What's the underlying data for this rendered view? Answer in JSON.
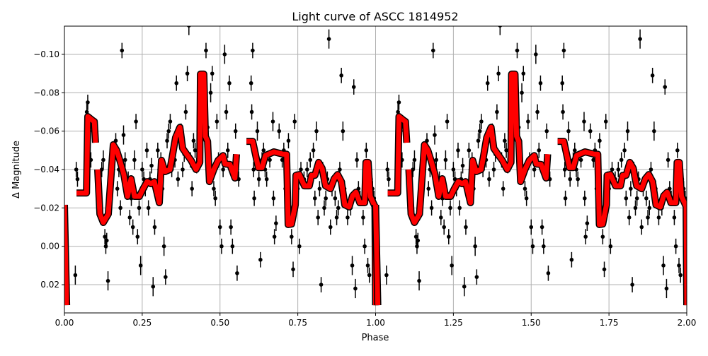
{
  "chart_data": {
    "type": "scatter",
    "title": "Light curve of ASCC 1814952",
    "xlabel": "Phase",
    "ylabel": "Δ Magnitude",
    "xlim": [
      0.0,
      2.0
    ],
    "ylim": [
      0.0347,
      -0.1147
    ],
    "y_inverted": true,
    "grid": true,
    "xticks": [
      0.0,
      0.25,
      0.5,
      0.75,
      1.0,
      1.25,
      1.5,
      1.75,
      2.0
    ],
    "xtick_labels": [
      "0.00",
      "0.25",
      "0.50",
      "0.75",
      "1.00",
      "1.25",
      "1.50",
      "1.75",
      "2.00"
    ],
    "yticks": [
      -0.1,
      -0.08,
      -0.06,
      -0.04,
      -0.02,
      0.0,
      0.02
    ],
    "ytick_labels": [
      "−0.10",
      "−0.08",
      "−0.06",
      "−0.04",
      "−0.02",
      "0.00",
      "0.02"
    ],
    "phase_repeats": 2,
    "colors": {
      "points": "#000000",
      "model": "#ff0000",
      "model_edge": "#000000",
      "grid": "#b0b0b0"
    },
    "points": [
      [
        0.035,
        0.015,
        0.005
      ],
      [
        0.038,
        -0.04,
        0.004
      ],
      [
        0.042,
        -0.035,
        0.004
      ],
      [
        0.07,
        -0.06,
        0.005
      ],
      [
        0.072,
        -0.07,
        0.005
      ],
      [
        0.075,
        -0.075,
        0.004
      ],
      [
        0.078,
        -0.055,
        0.004
      ],
      [
        0.08,
        -0.06,
        0.004
      ],
      [
        0.085,
        -0.045,
        0.004
      ],
      [
        0.11,
        -0.03,
        0.004
      ],
      [
        0.12,
        -0.04,
        0.004
      ],
      [
        0.125,
        -0.045,
        0.005
      ],
      [
        0.13,
        -0.005,
        0.004
      ],
      [
        0.133,
        0.0,
        0.004
      ],
      [
        0.136,
        -0.003,
        0.004
      ],
      [
        0.14,
        0.018,
        0.005
      ],
      [
        0.145,
        -0.02,
        0.004
      ],
      [
        0.15,
        -0.035,
        0.004
      ],
      [
        0.155,
        -0.045,
        0.004
      ],
      [
        0.16,
        -0.05,
        0.004
      ],
      [
        0.165,
        -0.055,
        0.004
      ],
      [
        0.17,
        -0.03,
        0.004
      ],
      [
        0.175,
        -0.04,
        0.004
      ],
      [
        0.18,
        -0.02,
        0.004
      ],
      [
        0.185,
        -0.102,
        0.004
      ],
      [
        0.19,
        -0.058,
        0.005
      ],
      [
        0.195,
        -0.045,
        0.004
      ],
      [
        0.2,
        -0.03,
        0.004
      ],
      [
        0.205,
        -0.035,
        0.004
      ],
      [
        0.21,
        -0.015,
        0.004
      ],
      [
        0.215,
        -0.025,
        0.004
      ],
      [
        0.22,
        -0.01,
        0.004
      ],
      [
        0.225,
        -0.045,
        0.005
      ],
      [
        0.23,
        -0.065,
        0.004
      ],
      [
        0.235,
        -0.005,
        0.004
      ],
      [
        0.24,
        -0.02,
        0.004
      ],
      [
        0.245,
        0.01,
        0.005
      ],
      [
        0.25,
        -0.04,
        0.004
      ],
      [
        0.255,
        -0.035,
        0.004
      ],
      [
        0.26,
        -0.03,
        0.004
      ],
      [
        0.265,
        -0.05,
        0.004
      ],
      [
        0.27,
        -0.02,
        0.004
      ],
      [
        0.275,
        -0.035,
        0.004
      ],
      [
        0.28,
        -0.042,
        0.004
      ],
      [
        0.285,
        0.021,
        0.005
      ],
      [
        0.29,
        -0.01,
        0.004
      ],
      [
        0.3,
        -0.05,
        0.004
      ],
      [
        0.305,
        -0.04,
        0.004
      ],
      [
        0.31,
        -0.045,
        0.004
      ],
      [
        0.315,
        -0.03,
        0.004
      ],
      [
        0.32,
        0.0,
        0.005
      ],
      [
        0.325,
        0.016,
        0.004
      ],
      [
        0.33,
        -0.055,
        0.004
      ],
      [
        0.335,
        -0.06,
        0.004
      ],
      [
        0.34,
        -0.065,
        0.004
      ],
      [
        0.345,
        -0.04,
        0.004
      ],
      [
        0.35,
        -0.05,
        0.004
      ],
      [
        0.355,
        -0.045,
        0.004
      ],
      [
        0.36,
        -0.085,
        0.004
      ],
      [
        0.365,
        -0.035,
        0.004
      ],
      [
        0.37,
        -0.055,
        0.004
      ],
      [
        0.375,
        -0.06,
        0.004
      ],
      [
        0.38,
        -0.04,
        0.004
      ],
      [
        0.385,
        -0.048,
        0.004
      ],
      [
        0.39,
        -0.07,
        0.004
      ],
      [
        0.395,
        -0.09,
        0.004
      ],
      [
        0.4,
        -0.115,
        0.005
      ],
      [
        0.405,
        -0.045,
        0.004
      ],
      [
        0.41,
        -0.03,
        0.004
      ],
      [
        0.415,
        -0.055,
        0.004
      ],
      [
        0.42,
        -0.05,
        0.004
      ],
      [
        0.425,
        -0.042,
        0.004
      ],
      [
        0.455,
        -0.102,
        0.004
      ],
      [
        0.46,
        -0.062,
        0.004
      ],
      [
        0.47,
        -0.08,
        0.005
      ],
      [
        0.475,
        -0.09,
        0.004
      ],
      [
        0.48,
        -0.03,
        0.004
      ],
      [
        0.485,
        -0.025,
        0.004
      ],
      [
        0.49,
        -0.065,
        0.004
      ],
      [
        0.495,
        -0.045,
        0.004
      ],
      [
        0.5,
        -0.01,
        0.004
      ],
      [
        0.505,
        0.0,
        0.004
      ],
      [
        0.51,
        -0.04,
        0.004
      ],
      [
        0.515,
        -0.1,
        0.005
      ],
      [
        0.52,
        -0.07,
        0.004
      ],
      [
        0.525,
        -0.05,
        0.004
      ],
      [
        0.53,
        -0.085,
        0.004
      ],
      [
        0.535,
        -0.01,
        0.004
      ],
      [
        0.54,
        0.0,
        0.004
      ],
      [
        0.545,
        -0.04,
        0.004
      ],
      [
        0.55,
        -0.06,
        0.004
      ],
      [
        0.555,
        0.014,
        0.004
      ],
      [
        0.56,
        -0.035,
        0.004
      ],
      [
        0.6,
        -0.085,
        0.004
      ],
      [
        0.602,
        -0.07,
        0.004
      ],
      [
        0.605,
        -0.102,
        0.004
      ],
      [
        0.608,
        -0.04,
        0.004
      ],
      [
        0.61,
        -0.025,
        0.004
      ],
      [
        0.62,
        -0.06,
        0.005
      ],
      [
        0.625,
        -0.035,
        0.004
      ],
      [
        0.63,
        0.007,
        0.004
      ],
      [
        0.635,
        -0.045,
        0.004
      ],
      [
        0.64,
        -0.05,
        0.004
      ],
      [
        0.645,
        -0.04,
        0.004
      ],
      [
        0.65,
        -0.035,
        0.004
      ],
      [
        0.66,
        -0.045,
        0.004
      ],
      [
        0.67,
        -0.065,
        0.005
      ],
      [
        0.672,
        -0.025,
        0.004
      ],
      [
        0.675,
        -0.005,
        0.004
      ],
      [
        0.68,
        -0.012,
        0.004
      ],
      [
        0.69,
        -0.06,
        0.004
      ],
      [
        0.7,
        -0.045,
        0.004
      ],
      [
        0.705,
        -0.05,
        0.004
      ],
      [
        0.71,
        -0.03,
        0.004
      ],
      [
        0.72,
        -0.055,
        0.004
      ],
      [
        0.73,
        -0.005,
        0.004
      ],
      [
        0.735,
        0.012,
        0.004
      ],
      [
        0.74,
        -0.065,
        0.004
      ],
      [
        0.745,
        -0.035,
        0.004
      ],
      [
        0.75,
        -0.03,
        0.004
      ],
      [
        0.755,
        0.0,
        0.004
      ],
      [
        0.76,
        -0.04,
        0.004
      ],
      [
        0.77,
        -0.035,
        0.004
      ],
      [
        0.78,
        -0.04,
        0.004
      ],
      [
        0.79,
        -0.045,
        0.004
      ],
      [
        0.8,
        -0.05,
        0.004
      ],
      [
        0.805,
        -0.025,
        0.004
      ],
      [
        0.81,
        -0.06,
        0.005
      ],
      [
        0.815,
        -0.015,
        0.004
      ],
      [
        0.82,
        -0.03,
        0.004
      ],
      [
        0.825,
        0.02,
        0.004
      ],
      [
        0.83,
        -0.04,
        0.004
      ],
      [
        0.835,
        -0.02,
        0.004
      ],
      [
        0.84,
        -0.025,
        0.004
      ],
      [
        0.845,
        -0.035,
        0.004
      ],
      [
        0.85,
        -0.108,
        0.005
      ],
      [
        0.855,
        -0.01,
        0.004
      ],
      [
        0.86,
        -0.03,
        0.004
      ],
      [
        0.87,
        -0.025,
        0.004
      ],
      [
        0.875,
        -0.015,
        0.004
      ],
      [
        0.88,
        -0.02,
        0.004
      ],
      [
        0.885,
        -0.04,
        0.004
      ],
      [
        0.89,
        -0.089,
        0.004
      ],
      [
        0.895,
        -0.06,
        0.005
      ],
      [
        0.9,
        -0.03,
        0.004
      ],
      [
        0.91,
        -0.015,
        0.004
      ],
      [
        0.92,
        -0.02,
        0.004
      ],
      [
        0.925,
        0.01,
        0.005
      ],
      [
        0.93,
        -0.083,
        0.004
      ],
      [
        0.935,
        0.022,
        0.005
      ],
      [
        0.94,
        -0.045,
        0.004
      ],
      [
        0.945,
        -0.03,
        0.004
      ],
      [
        0.95,
        -0.025,
        0.004
      ],
      [
        0.96,
        -0.015,
        0.004
      ],
      [
        0.965,
        0.0,
        0.004
      ],
      [
        0.97,
        -0.05,
        0.004
      ],
      [
        0.975,
        0.01,
        0.004
      ],
      [
        0.98,
        0.015,
        0.004
      ],
      [
        0.985,
        -0.035,
        0.004
      ],
      [
        0.99,
        -0.03,
        0.004
      ],
      [
        0.995,
        -0.025,
        0.004
      ]
    ],
    "model_segments": [
      [
        [
          0.0,
          -0.0216
        ],
        [
          0.007,
          0.0307
        ]
      ],
      [
        [
          0.039,
          -0.0278
        ],
        [
          0.071,
          -0.0278
        ],
        [
          0.075,
          -0.0676
        ],
        [
          0.089,
          -0.0658
        ],
        [
          0.096,
          -0.065
        ],
        [
          0.1,
          -0.054
        ]
      ],
      [
        [
          0.107,
          -0.04
        ],
        [
          0.114,
          -0.0168
        ],
        [
          0.125,
          -0.0124
        ],
        [
          0.141,
          -0.0168
        ],
        [
          0.157,
          -0.0529
        ],
        [
          0.168,
          -0.05
        ],
        [
          0.18,
          -0.0437
        ],
        [
          0.191,
          -0.0374
        ],
        [
          0.203,
          -0.026
        ],
        [
          0.214,
          -0.0352
        ],
        [
          0.225,
          -0.026
        ],
        [
          0.241,
          -0.026
        ],
        [
          0.253,
          -0.03
        ],
        [
          0.266,
          -0.0337
        ],
        [
          0.278,
          -0.0326
        ],
        [
          0.289,
          -0.0337
        ],
        [
          0.305,
          -0.0227
        ],
        [
          0.312,
          -0.0448
        ],
        [
          0.323,
          -0.0389
        ],
        [
          0.339,
          -0.04
        ],
        [
          0.346,
          -0.0462
        ],
        [
          0.357,
          -0.0566
        ],
        [
          0.371,
          -0.062
        ],
        [
          0.38,
          -0.051
        ],
        [
          0.396,
          -0.0473
        ],
        [
          0.407,
          -0.0448
        ],
        [
          0.423,
          -0.04
        ],
        [
          0.435,
          -0.0437
        ],
        [
          0.437,
          -0.0897
        ],
        [
          0.448,
          -0.0897
        ],
        [
          0.453,
          -0.0573
        ],
        [
          0.46,
          -0.0547
        ],
        [
          0.466,
          -0.0337
        ],
        [
          0.48,
          -0.04
        ],
        [
          0.494,
          -0.0448
        ],
        [
          0.51,
          -0.0473
        ],
        [
          0.516,
          -0.0429
        ],
        [
          0.532,
          -0.0426
        ],
        [
          0.548,
          -0.0356
        ],
        [
          0.553,
          -0.048
        ]
      ],
      [
        [
          0.585,
          -0.0547
        ],
        [
          0.605,
          -0.0547
        ],
        [
          0.623,
          -0.041
        ],
        [
          0.635,
          -0.041
        ],
        [
          0.646,
          -0.0473
        ],
        [
          0.673,
          -0.0492
        ],
        [
          0.703,
          -0.048
        ],
        [
          0.714,
          -0.048
        ],
        [
          0.719,
          -0.0113
        ],
        [
          0.73,
          -0.0116
        ],
        [
          0.742,
          -0.0216
        ],
        [
          0.744,
          -0.037
        ],
        [
          0.755,
          -0.0374
        ],
        [
          0.771,
          -0.0315
        ],
        [
          0.787,
          -0.0315
        ],
        [
          0.794,
          -0.037
        ],
        [
          0.805,
          -0.037
        ],
        [
          0.817,
          -0.0437
        ],
        [
          0.828,
          -0.0407
        ],
        [
          0.839,
          -0.0315
        ],
        [
          0.855,
          -0.03
        ],
        [
          0.867,
          -0.0352
        ],
        [
          0.878,
          -0.0374
        ],
        [
          0.89,
          -0.0337
        ],
        [
          0.901,
          -0.0216
        ],
        [
          0.915,
          -0.0205
        ],
        [
          0.926,
          -0.0264
        ],
        [
          0.937,
          -0.0282
        ],
        [
          0.949,
          -0.0227
        ],
        [
          0.965,
          -0.0227
        ],
        [
          0.969,
          -0.0437
        ],
        [
          0.976,
          -0.0437
        ],
        [
          0.983,
          -0.026
        ],
        [
          0.998,
          -0.0208
        ],
        [
          1.0,
          0.0307
        ]
      ]
    ]
  }
}
